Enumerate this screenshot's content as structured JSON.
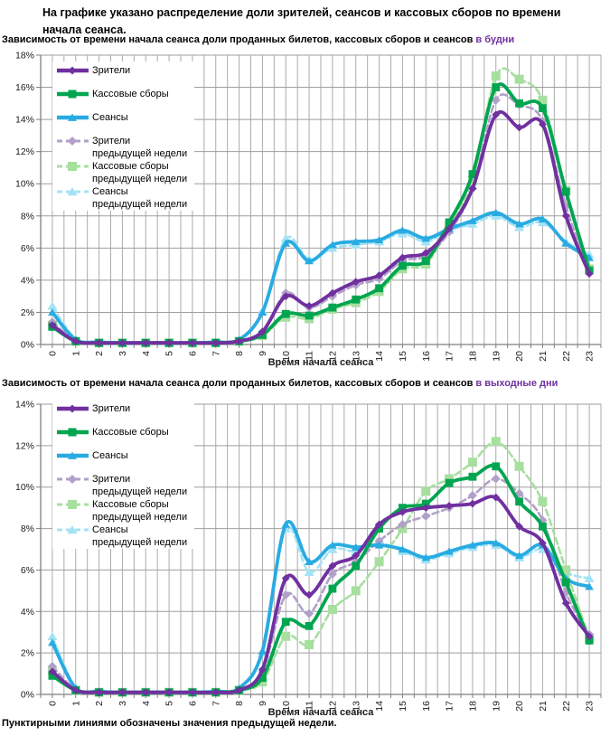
{
  "title": "На графике указано распределение доли зрителей, сеансов и кассовых сборов по времени начала сеанса.",
  "footer": "Пунктирными линиями обозначены значения предыдущей недели.",
  "colors": {
    "viewers": "#7030A0",
    "boxoffice": "#00A550",
    "sessions": "#29ABE2",
    "viewers_prev": "#B1A0C7",
    "boxoffice_prev": "#A7DF9F",
    "sessions_prev": "#A3E3F5",
    "accent": "#7030A0",
    "grid_h": "#9e9e9e",
    "grid_v": "#ababab",
    "axis": "#7f7f7f"
  },
  "chart_data": [
    {
      "type": "line",
      "subtitle": "Зависимость от времени начала сеанса доли проданных билетов, кассовых сборов и сеансов ",
      "subtitle_accent": "в будни",
      "xlabel": "Время начала сеанса",
      "x": [
        "0",
        "1",
        "2",
        "3",
        "4",
        "5",
        "6",
        "7",
        "8",
        "9",
        "10",
        "11",
        "12",
        "13",
        "14",
        "15",
        "16",
        "17",
        "18",
        "19",
        "20",
        "21",
        "22",
        "23"
      ],
      "ylim": [
        0,
        18
      ],
      "yticks": [
        "0%",
        "2%",
        "4%",
        "6%",
        "8%",
        "10%",
        "12%",
        "14%",
        "16%",
        "18%"
      ],
      "grid": "on",
      "legend_position": "top-left-overlay",
      "series": [
        {
          "name": "Зрители",
          "color_key": "viewers",
          "dash": false,
          "marker": "diamond",
          "values": [
            1.2,
            0.2,
            0.1,
            0.1,
            0.1,
            0.1,
            0.1,
            0.1,
            0.2,
            0.8,
            3.0,
            2.4,
            3.2,
            3.9,
            4.3,
            5.4,
            5.7,
            7.2,
            9.7,
            14.3,
            13.5,
            13.7,
            8.0,
            4.4
          ]
        },
        {
          "name": "Кассовые сборы",
          "color_key": "boxoffice",
          "dash": false,
          "marker": "square",
          "values": [
            1.1,
            0.2,
            0.1,
            0.1,
            0.1,
            0.1,
            0.1,
            0.1,
            0.2,
            0.6,
            1.9,
            1.8,
            2.3,
            2.8,
            3.5,
            4.9,
            5.2,
            7.6,
            10.6,
            16.0,
            15.0,
            14.7,
            9.5,
            4.6
          ]
        },
        {
          "name": "Сеансы",
          "color_key": "sessions",
          "dash": false,
          "marker": "triangle",
          "values": [
            2.0,
            0.3,
            0.15,
            0.1,
            0.1,
            0.1,
            0.1,
            0.15,
            0.3,
            2.0,
            6.3,
            5.2,
            6.2,
            6.4,
            6.5,
            7.1,
            6.6,
            7.2,
            7.7,
            8.2,
            7.5,
            7.8,
            6.3,
            5.4
          ]
        },
        {
          "name": "Зрители",
          "name2": "предыдущей недели",
          "color_key": "viewers_prev",
          "dash": true,
          "marker": "diamond",
          "values": [
            1.4,
            0.25,
            0.1,
            0.1,
            0.1,
            0.1,
            0.1,
            0.1,
            0.2,
            0.7,
            3.2,
            2.3,
            3.0,
            3.7,
            4.1,
            5.2,
            5.5,
            7.0,
            9.7,
            15.2,
            14.9,
            13.9,
            8.6,
            4.5
          ]
        },
        {
          "name": "Кассовые сборы",
          "name2": "предыдущей недели",
          "color_key": "boxoffice_prev",
          "dash": true,
          "marker": "square",
          "values": [
            1.2,
            0.2,
            0.1,
            0.1,
            0.1,
            0.1,
            0.1,
            0.1,
            0.2,
            0.55,
            1.7,
            1.6,
            2.2,
            2.6,
            3.3,
            4.7,
            5.0,
            7.4,
            10.2,
            16.7,
            16.5,
            15.2,
            9.6,
            4.7
          ]
        },
        {
          "name": "Сеансы",
          "name2": "предыдущей недели",
          "color_key": "sessions_prev",
          "dash": true,
          "marker": "triangle",
          "values": [
            2.4,
            0.35,
            0.15,
            0.1,
            0.1,
            0.1,
            0.1,
            0.15,
            0.3,
            2.1,
            6.6,
            5.3,
            6.0,
            6.2,
            6.4,
            6.9,
            6.4,
            7.1,
            7.5,
            8.0,
            7.3,
            7.6,
            6.4,
            5.6
          ]
        }
      ]
    },
    {
      "type": "line",
      "subtitle": "Зависимость от времени начала сеанса доли проданных билетов, кассовых сборов и сеансов ",
      "subtitle_accent": "в выходные дни",
      "xlabel": "Время начала сеанса",
      "x": [
        "0",
        "1",
        "2",
        "3",
        "4",
        "5",
        "6",
        "7",
        "8",
        "9",
        "10",
        "11",
        "12",
        "13",
        "14",
        "15",
        "16",
        "17",
        "18",
        "19",
        "20",
        "21",
        "22",
        "23"
      ],
      "ylim": [
        0,
        14
      ],
      "yticks": [
        "0%",
        "2%",
        "4%",
        "6%",
        "8%",
        "10%",
        "12%",
        "14%"
      ],
      "grid": "on",
      "legend_position": "top-left-overlay",
      "series": [
        {
          "name": "Зрители",
          "color_key": "viewers",
          "dash": false,
          "marker": "diamond",
          "values": [
            1.1,
            0.2,
            0.1,
            0.1,
            0.1,
            0.1,
            0.1,
            0.1,
            0.2,
            1.2,
            5.6,
            4.8,
            6.2,
            6.7,
            8.2,
            8.8,
            9.0,
            9.1,
            9.2,
            9.5,
            8.1,
            7.3,
            4.4,
            2.8
          ]
        },
        {
          "name": "Кассовые сборы",
          "color_key": "boxoffice",
          "dash": false,
          "marker": "square",
          "values": [
            0.9,
            0.2,
            0.1,
            0.1,
            0.1,
            0.1,
            0.1,
            0.1,
            0.2,
            0.8,
            3.5,
            3.3,
            5.1,
            6.2,
            8.0,
            9.0,
            9.2,
            10.2,
            10.5,
            11.0,
            9.3,
            8.1,
            5.4,
            2.6
          ]
        },
        {
          "name": "Сеансы",
          "color_key": "sessions",
          "dash": false,
          "marker": "triangle",
          "values": [
            2.5,
            0.3,
            0.15,
            0.1,
            0.1,
            0.1,
            0.1,
            0.15,
            0.3,
            2.1,
            8.2,
            6.4,
            7.2,
            7.1,
            7.2,
            7.0,
            6.6,
            6.9,
            7.2,
            7.3,
            6.7,
            7.2,
            5.6,
            5.2
          ]
        },
        {
          "name": "Зрители",
          "name2": "предыдущей недели",
          "color_key": "viewers_prev",
          "dash": true,
          "marker": "diamond",
          "values": [
            1.35,
            0.25,
            0.1,
            0.1,
            0.1,
            0.1,
            0.1,
            0.1,
            0.2,
            1.1,
            4.8,
            3.9,
            5.8,
            6.4,
            7.4,
            8.2,
            8.6,
            9.0,
            9.6,
            10.4,
            9.7,
            8.4,
            4.9,
            2.9
          ]
        },
        {
          "name": "Кассовые сборы",
          "name2": "предыдущей недели",
          "color_key": "boxoffice_prev",
          "dash": true,
          "marker": "square",
          "values": [
            1.15,
            0.2,
            0.1,
            0.1,
            0.1,
            0.1,
            0.1,
            0.1,
            0.2,
            0.6,
            2.8,
            2.4,
            4.1,
            5.0,
            6.4,
            8.0,
            9.8,
            10.4,
            11.2,
            12.2,
            11.0,
            9.3,
            6.0,
            2.7
          ]
        },
        {
          "name": "Сеансы",
          "name2": "предыдущей недели",
          "color_key": "sessions_prev",
          "dash": true,
          "marker": "triangle",
          "values": [
            2.8,
            0.35,
            0.15,
            0.1,
            0.1,
            0.1,
            0.1,
            0.15,
            0.3,
            2.0,
            8.0,
            5.9,
            7.0,
            6.9,
            7.3,
            6.9,
            6.5,
            6.8,
            7.1,
            7.2,
            6.6,
            7.0,
            5.9,
            5.6
          ]
        }
      ]
    }
  ]
}
